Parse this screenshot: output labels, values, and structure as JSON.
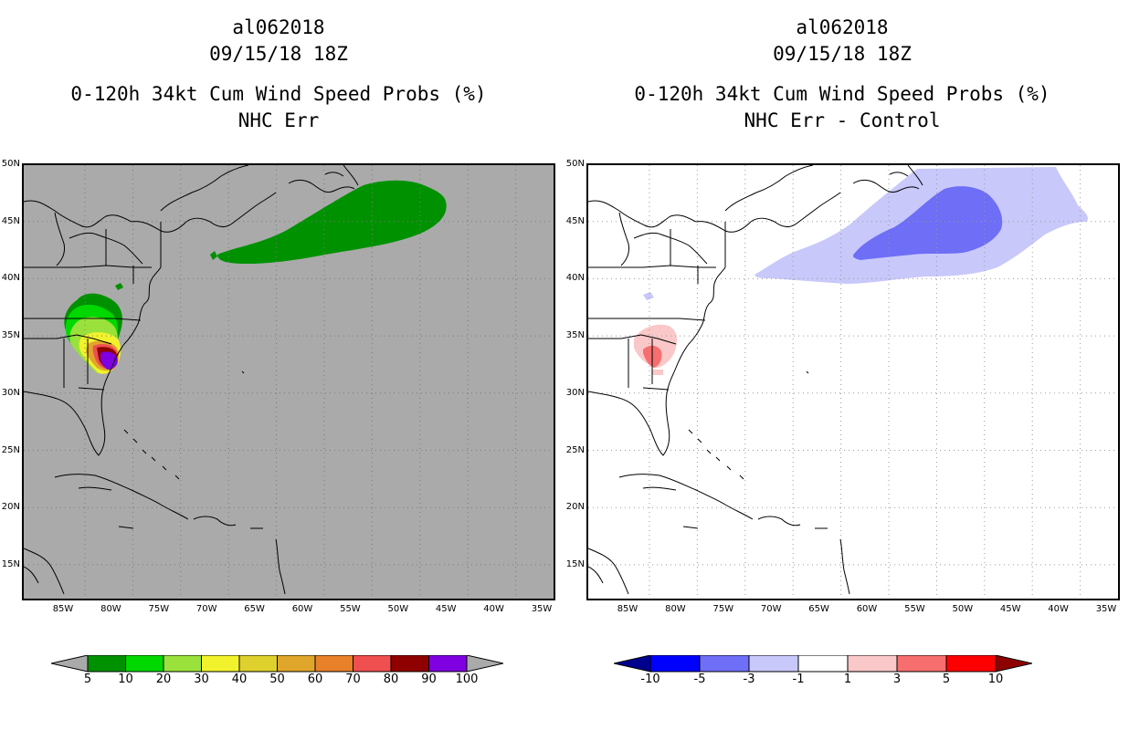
{
  "left": {
    "storm_id": "al062018",
    "datetime": "09/15/18 18Z",
    "title": "0-120h 34kt Cum Wind Speed Probs (%)",
    "subtitle": "NHC Err",
    "colorbar": {
      "labels": [
        "5",
        "10",
        "20",
        "30",
        "40",
        "50",
        "60",
        "70",
        "80",
        "90",
        "100"
      ],
      "colors": [
        "#009100",
        "#00d800",
        "#9ae23b",
        "#f2f22c",
        "#dfd12d",
        "#e0a62c",
        "#e9812a",
        "#ef4f4e",
        "#8f0000",
        "#7f00e0"
      ],
      "under_color": "#aaaaaa",
      "over_color": "#aaaaaa"
    }
  },
  "right": {
    "storm_id": "al062018",
    "datetime": "09/15/18 18Z",
    "title": "0-120h 34kt Cum Wind Speed Probs (%)",
    "subtitle": "NHC Err - Control",
    "colorbar": {
      "labels": [
        "-10",
        "-5",
        "-3",
        "-1",
        "1",
        "3",
        "5",
        "10"
      ],
      "colors": [
        "#0000ff",
        "#6e6ef6",
        "#c8c8fa",
        "#ffffff",
        "#fac8c8",
        "#f66e6e",
        "#ff0000"
      ],
      "under_color": "#00008f",
      "over_color": "#8f0000"
    }
  },
  "axes": {
    "lat_labels": [
      "50N",
      "45N",
      "40N",
      "35N",
      "30N",
      "25N",
      "20N",
      "15N"
    ],
    "lon_labels": [
      "85W",
      "80W",
      "75W",
      "70W",
      "65W",
      "60W",
      "55W",
      "50W",
      "45W",
      "40W",
      "35W"
    ]
  },
  "colors": {
    "map_background": "#aaaaaa",
    "grid": "#9a9a9a"
  }
}
